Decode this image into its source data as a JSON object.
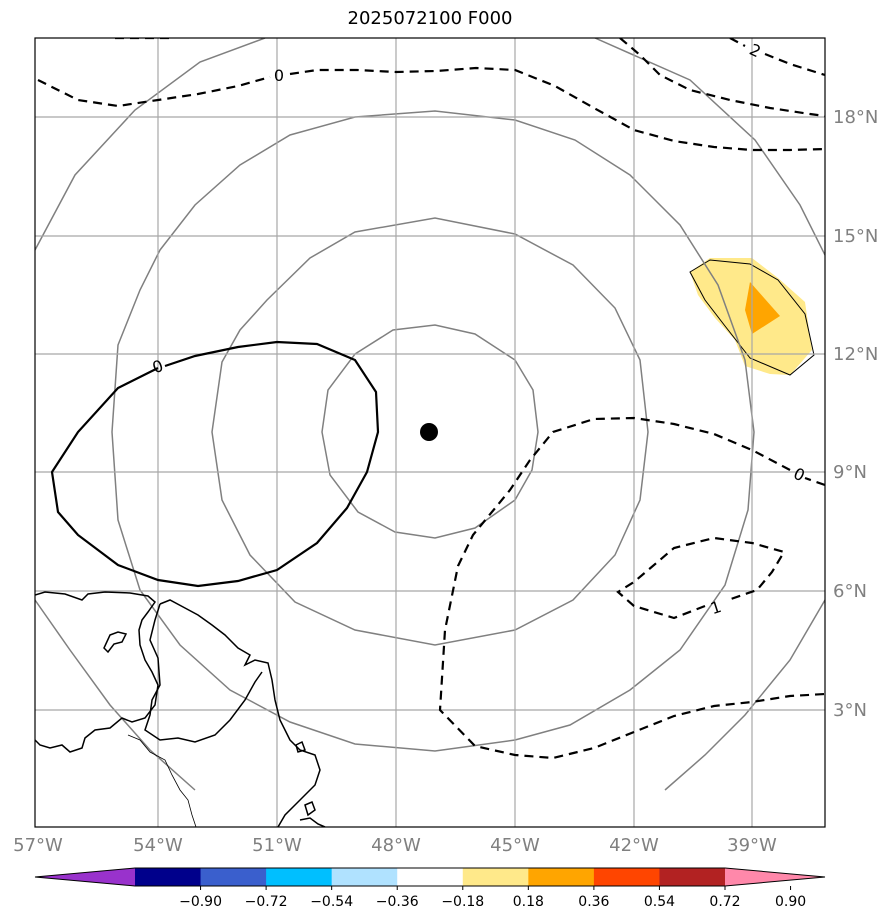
{
  "title": "2025072100 F000",
  "lon_labels": [
    "57°W",
    "54°W",
    "51°W",
    "48°W",
    "45°W",
    "42°W",
    "39°W"
  ],
  "lat_labels": [
    "18°N",
    "15°N",
    "12°N",
    "9°N",
    "6°N",
    "3°N"
  ],
  "colorbar": {
    "tick_labels": [
      "−0.90",
      "−0.72",
      "−0.54",
      "−0.36",
      "−0.18",
      "0.18",
      "0.36",
      "0.54",
      "0.72",
      "0.90"
    ],
    "colors": [
      "#9932cc",
      "#00008b",
      "#3a5fcd",
      "#00bfff",
      "#b0e2ff",
      "#ffffff",
      "#ffe98a",
      "#ffa500",
      "#ff4500",
      "#b22222",
      "#ff88aa"
    ]
  },
  "contour_labels": {
    "zero_top": "0",
    "two_top_right": "2",
    "zero_left": "0",
    "zero_right": "0",
    "neg_one": "1"
  },
  "map_extent": {
    "lon_min": -57,
    "lon_max": -37,
    "lat_min": 0,
    "lat_max": 20
  },
  "center_marker": {
    "lon": -47.1,
    "lat": 10.0
  }
}
